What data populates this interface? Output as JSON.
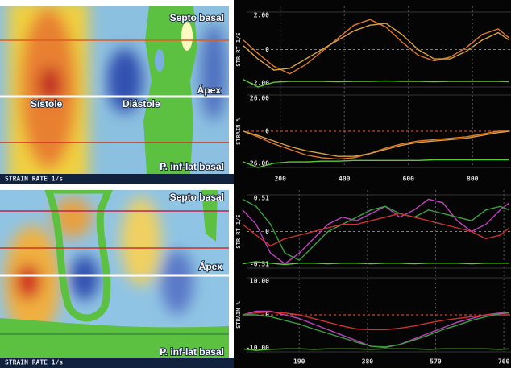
{
  "panels": [
    {
      "top_label": "Septo basal",
      "mid_label": "Ápex",
      "bottom_label": "P. inf-lat basal",
      "systole": "Sístole",
      "diastole": "Diástole",
      "footer": "STRAIN RATE 1/s"
    },
    {
      "top_label": "Septo basal",
      "mid_label": "Ápex",
      "bottom_label": "P. inf-lat basal",
      "footer": "STRAIN RATE 1/s"
    }
  ],
  "chart_data": [
    {
      "type": "line",
      "y_label": "STR RT 1/S",
      "xlim": [
        80,
        920
      ],
      "ylim": [
        -2,
        2
      ],
      "yticks": [
        {
          "value": -2,
          "label": "-2.00"
        },
        0,
        {
          "value": 2,
          "label": "2.00"
        }
      ],
      "x": [
        85,
        130,
        180,
        230,
        280,
        330,
        380,
        430,
        480,
        530,
        580,
        630,
        680,
        730,
        780,
        830,
        880,
        915
      ],
      "series": [
        {
          "color": "#e0782a",
          "values": [
            0.5,
            -0.2,
            -0.9,
            -1.3,
            -0.8,
            -0.1,
            0.6,
            1.3,
            1.6,
            1.2,
            0.4,
            -0.3,
            -0.6,
            -0.4,
            0.1,
            0.8,
            1.1,
            0.6
          ]
        },
        {
          "color": "#d8a040",
          "values": [
            0.2,
            -0.5,
            -1.1,
            -1.0,
            -0.5,
            0.0,
            0.5,
            1.0,
            1.3,
            1.4,
            0.8,
            0.0,
            -0.5,
            -0.5,
            -0.1,
            0.5,
            0.9,
            0.5
          ]
        },
        {
          "color": "#5ec832",
          "values": [
            -1.6,
            -2.0,
            -1.75,
            -1.7,
            -1.7,
            -1.7,
            -1.72,
            -1.7,
            -1.7,
            -1.68,
            -1.7,
            -1.7,
            -1.72,
            -1.7,
            -1.7,
            -1.7,
            -1.7,
            -1.72
          ]
        }
      ]
    },
    {
      "type": "line",
      "y_label": "STRAIN %",
      "xlim": [
        80,
        920
      ],
      "ylim": [
        -26,
        26
      ],
      "yticks": [
        {
          "value": -26,
          "label": "-26.00"
        },
        0,
        {
          "value": 26,
          "label": "26.00"
        }
      ],
      "xticks": [
        200,
        400,
        600,
        800
      ],
      "x": [
        85,
        130,
        180,
        230,
        280,
        330,
        380,
        430,
        480,
        530,
        580,
        630,
        680,
        730,
        780,
        830,
        880,
        915
      ],
      "series": [
        {
          "color": "#e0782a",
          "values": [
            0,
            -4,
            -9,
            -13,
            -17,
            -19,
            -20,
            -19,
            -16,
            -12,
            -9,
            -7,
            -6,
            -5,
            -4,
            -2,
            0,
            0
          ]
        },
        {
          "color": "#d8a040",
          "values": [
            0,
            -3,
            -7,
            -11,
            -14,
            -16,
            -18,
            -18,
            -16,
            -13,
            -10,
            -8,
            -7,
            -6,
            -5,
            -3,
            -1,
            0
          ]
        },
        {
          "color": "#5ec832",
          "values": [
            -22,
            -26,
            -23,
            -22,
            -22,
            -21.5,
            -21.5,
            -21,
            -21,
            -21,
            -21,
            -21,
            -20.5,
            -20.5,
            -20.5,
            -20.5,
            -20.5,
            -20.5
          ]
        }
      ]
    },
    {
      "type": "line",
      "y_label": "STR RT 1/S",
      "xlim": [
        30,
        780
      ],
      "ylim": [
        -0.51,
        0.51
      ],
      "yticks": [
        {
          "value": -0.51,
          "label": "-0.51"
        },
        0,
        {
          "value": 0.51,
          "label": "0.51"
        }
      ],
      "x": [
        32,
        70,
        110,
        150,
        190,
        230,
        270,
        310,
        350,
        390,
        430,
        470,
        510,
        550,
        590,
        630,
        670,
        710,
        750,
        775
      ],
      "series": [
        {
          "color": "#c040c0",
          "values": [
            0.3,
            0.1,
            -0.3,
            -0.45,
            -0.3,
            -0.1,
            0.1,
            0.2,
            0.15,
            0.25,
            0.35,
            0.2,
            0.3,
            0.45,
            0.4,
            0.15,
            0.0,
            0.1,
            0.3,
            0.4
          ]
        },
        {
          "color": "#3aa040",
          "values": [
            0.45,
            0.35,
            0.1,
            -0.3,
            -0.4,
            -0.2,
            0.0,
            0.1,
            0.2,
            0.3,
            0.35,
            0.25,
            0.2,
            0.3,
            0.25,
            0.2,
            0.15,
            0.3,
            0.35,
            0.3
          ]
        },
        {
          "color": "#d03030",
          "values": [
            0.1,
            -0.05,
            -0.2,
            -0.1,
            -0.05,
            0.0,
            0.05,
            0.1,
            0.1,
            0.15,
            0.2,
            0.25,
            0.2,
            0.15,
            0.1,
            0.05,
            0.0,
            -0.1,
            -0.05,
            0.05
          ]
        },
        {
          "color": "#5ec832",
          "values": [
            -0.45,
            -0.42,
            -0.44,
            -0.46,
            -0.44,
            -0.44,
            -0.45,
            -0.44,
            -0.44,
            -0.45,
            -0.44,
            -0.44,
            -0.45,
            -0.44,
            -0.44,
            -0.44,
            -0.45,
            -0.44,
            -0.44,
            -0.44
          ]
        }
      ]
    },
    {
      "type": "line",
      "y_label": "STRAIN %",
      "xlim": [
        30,
        780
      ],
      "ylim": [
        -10,
        10
      ],
      "yticks": [
        {
          "value": -10,
          "label": "-10.00"
        },
        0,
        {
          "value": 10,
          "label": "10.00"
        }
      ],
      "xticks": [
        190,
        380,
        570,
        760
      ],
      "x": [
        32,
        70,
        110,
        150,
        190,
        230,
        270,
        310,
        350,
        390,
        430,
        470,
        510,
        550,
        590,
        630,
        670,
        710,
        750,
        775
      ],
      "series": [
        {
          "color": "#c040c0",
          "values": [
            0,
            1,
            1,
            0,
            -1,
            -2.5,
            -4,
            -5.5,
            -7,
            -8.5,
            -8.8,
            -8,
            -6.5,
            -5,
            -3.5,
            -2,
            -1,
            0,
            0.5,
            0.5
          ]
        },
        {
          "color": "#d03030",
          "values": [
            0,
            0.5,
            0.8,
            0.5,
            0,
            -1,
            -2,
            -3,
            -3.8,
            -4,
            -4,
            -3.6,
            -3,
            -2.2,
            -1.5,
            -1,
            -0.5,
            0,
            0,
            0
          ]
        },
        {
          "color": "#3aa040",
          "values": [
            0,
            0,
            -0.5,
            -1.5,
            -2.5,
            -3.8,
            -5,
            -6.2,
            -7.4,
            -8.5,
            -8.7,
            -8,
            -6.8,
            -5.5,
            -4,
            -2.8,
            -1.5,
            -0.5,
            0.3,
            0.5
          ]
        },
        {
          "color": "#5ec832",
          "values": [
            -9.2,
            -9.6,
            -9.3,
            -9.2,
            -9.2,
            -9.3,
            -9.2,
            -9.2,
            -9.2,
            -9.3,
            -9.2,
            -9.2,
            -9.2,
            -9.3,
            -9.2,
            -9.2,
            -9.2,
            -9.2,
            -9.3,
            -9.2
          ]
        }
      ]
    }
  ]
}
